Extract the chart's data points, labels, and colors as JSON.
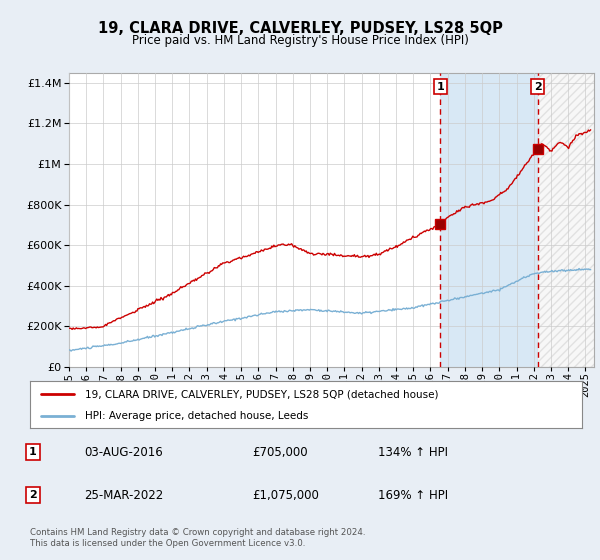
{
  "title": "19, CLARA DRIVE, CALVERLEY, PUDSEY, LS28 5QP",
  "subtitle": "Price paid vs. HM Land Registry's House Price Index (HPI)",
  "hpi_label": "HPI: Average price, detached house, Leeds",
  "property_label": "19, CLARA DRIVE, CALVERLEY, PUDSEY, LS28 5QP (detached house)",
  "annotation1": {
    "num": "1",
    "date": "03-AUG-2016",
    "price": "£705,000",
    "hpi": "134% ↑ HPI",
    "x_year": 2016.58
  },
  "annotation2": {
    "num": "2",
    "date": "25-MAR-2022",
    "price": "£1,075,000",
    "hpi": "169% ↑ HPI",
    "x_year": 2022.23
  },
  "footer": "Contains HM Land Registry data © Crown copyright and database right 2024.\nThis data is licensed under the Open Government Licence v3.0.",
  "ylim": [
    0,
    1450000
  ],
  "xlim_start": 1995.0,
  "xlim_end": 2025.5,
  "property_color": "#cc0000",
  "hpi_color": "#7ab0d4",
  "background_color": "#e8eef5",
  "plot_bg_color": "#ffffff",
  "grid_color": "#cccccc",
  "annot_vline_color": "#cc0000",
  "annot_box_color": "#cc0000",
  "shade_color": "#d8e8f5",
  "hatch_color": "#cccccc"
}
